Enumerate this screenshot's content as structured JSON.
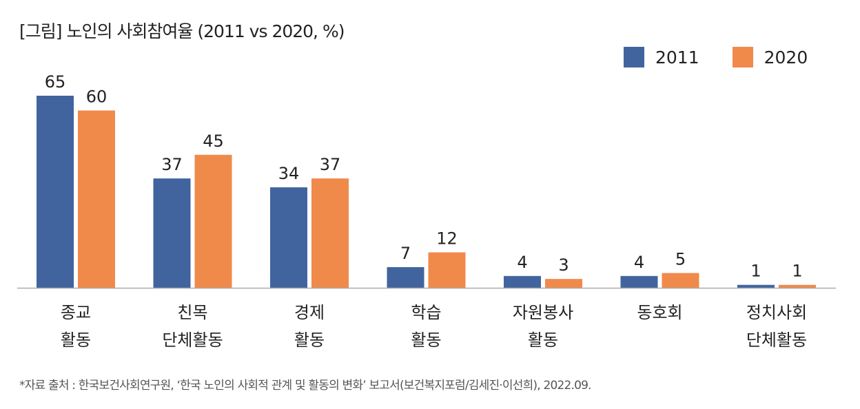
{
  "chart_data": {
    "type": "bar",
    "title": "[그림] 노인의 사회참여율 (2011 vs 2020, %)",
    "categories": [
      [
        "종교",
        "활동"
      ],
      [
        "친목",
        "단체활동"
      ],
      [
        "경제",
        "활동"
      ],
      [
        "학습",
        "활동"
      ],
      [
        "자원봉사",
        "활동"
      ],
      [
        "동호회"
      ],
      [
        "정치사회",
        "단체활동"
      ]
    ],
    "series": [
      {
        "name": "2011",
        "color": "#41649f",
        "values": [
          65,
          37,
          34,
          7,
          4,
          4,
          1
        ]
      },
      {
        "name": "2020",
        "color": "#f08a4b",
        "values": [
          60,
          45,
          37,
          12,
          3,
          5,
          1
        ]
      }
    ],
    "ylim": [
      0,
      70
    ],
    "legend": "top-right",
    "grid": false
  },
  "source": "*자료 출처 : 한국보건사회연구원, ‘한국 노인의 사회적 관계 및 활동의 변화’ 보고서(보건복지포럼/김세진·이선희), 2022.09."
}
